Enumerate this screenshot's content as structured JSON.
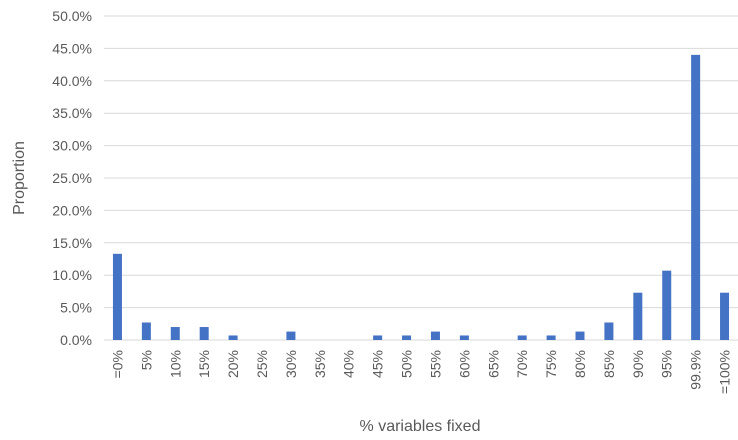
{
  "chart_data": {
    "type": "bar",
    "title": "",
    "xlabel": "% variables fixed",
    "ylabel": "Proportion",
    "ylim": [
      0,
      50
    ],
    "yticks": [
      "0.0%",
      "5.0%",
      "10.0%",
      "15.0%",
      "20.0%",
      "25.0%",
      "30.0%",
      "35.0%",
      "40.0%",
      "45.0%",
      "50.0%"
    ],
    "categories": [
      "=0%",
      "5%",
      "10%",
      "15%",
      "20%",
      "25%",
      "30%",
      "35%",
      "40%",
      "45%",
      "50%",
      "55%",
      "60%",
      "65%",
      "70%",
      "75%",
      "80%",
      "85%",
      "90%",
      "95%",
      "99.9%",
      "=100%"
    ],
    "values": [
      13.3,
      2.7,
      2.0,
      2.0,
      0.7,
      0.0,
      1.3,
      0.0,
      0.0,
      0.7,
      0.7,
      1.3,
      0.7,
      0.0,
      0.7,
      0.7,
      1.3,
      2.7,
      7.3,
      10.7,
      44.0,
      7.3
    ],
    "grid": true,
    "legend": "none",
    "colors": {
      "bar": "#4472c4",
      "gridline": "#d9d9d9",
      "text": "#595959"
    }
  }
}
